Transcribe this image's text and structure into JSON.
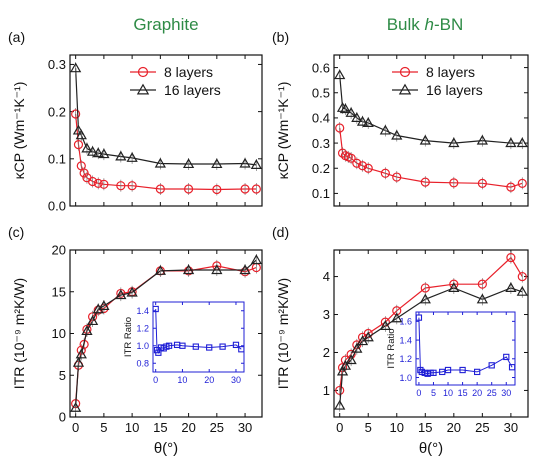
{
  "colors": {
    "red": "#e8212b",
    "black": "#222222",
    "blue": "#1f1fd6",
    "title_green": "#2e8b46"
  },
  "columns": [
    {
      "title_main": "Graphite",
      "title_italic": "",
      "title_rest": ""
    },
    {
      "title_main": "Bulk ",
      "title_italic": "h",
      "title_rest": "-BN"
    }
  ],
  "chart_data": [
    {
      "id": "a",
      "type": "line",
      "panel_label": "(a)",
      "ylabel": "κCP (Wm⁻¹K⁻¹)",
      "xlabel": "",
      "xlim": [
        -1,
        33
      ],
      "ylim": [
        0,
        0.32
      ],
      "xticks": [
        0,
        5,
        10,
        15,
        20,
        25,
        30
      ],
      "xtick_labels": [
        "",
        "",
        "",
        "",
        "",
        "",
        ""
      ],
      "yticks": [
        0.0,
        0.1,
        0.2,
        0.3
      ],
      "ytick_labels": [
        "0.0",
        "0.1",
        "0.2",
        "0.3"
      ],
      "legend_position": "top-right",
      "series": [
        {
          "name": "8 layers",
          "marker": "circle",
          "color": "red",
          "x": [
            0,
            0.5,
            1,
            1.5,
            2,
            3,
            4,
            5,
            8,
            10,
            15,
            20,
            25,
            30,
            32
          ],
          "y": [
            0.195,
            0.13,
            0.085,
            0.07,
            0.06,
            0.052,
            0.048,
            0.046,
            0.043,
            0.043,
            0.036,
            0.036,
            0.035,
            0.036,
            0.036
          ]
        },
        {
          "name": "16 layers",
          "marker": "triangle",
          "color": "black",
          "x": [
            0,
            0.5,
            1,
            2,
            3,
            4,
            5,
            8,
            10,
            15,
            20,
            25,
            30,
            32
          ],
          "y": [
            0.292,
            0.16,
            0.15,
            0.122,
            0.115,
            0.112,
            0.11,
            0.105,
            0.102,
            0.09,
            0.089,
            0.089,
            0.09,
            0.087
          ]
        }
      ]
    },
    {
      "id": "b",
      "type": "line",
      "panel_label": "(b)",
      "ylabel": "κCP (Wm⁻¹K⁻¹)",
      "xlabel": "",
      "xlim": [
        -1,
        33
      ],
      "ylim": [
        0.05,
        0.65
      ],
      "xticks": [
        0,
        5,
        10,
        15,
        20,
        25,
        30
      ],
      "xtick_labels": [
        "",
        "",
        "",
        "",
        "",
        "",
        ""
      ],
      "yticks": [
        0.1,
        0.2,
        0.3,
        0.4,
        0.5,
        0.6
      ],
      "ytick_labels": [
        "0.1",
        "0.2",
        "0.3",
        "0.4",
        "0.5",
        "0.6"
      ],
      "legend_position": "top-right",
      "series": [
        {
          "name": "8 layers",
          "marker": "circle",
          "color": "red",
          "x": [
            0,
            0.5,
            1,
            1.5,
            2,
            3,
            4,
            5,
            8,
            10,
            15,
            20,
            25,
            30,
            32
          ],
          "y": [
            0.36,
            0.26,
            0.25,
            0.245,
            0.24,
            0.22,
            0.21,
            0.2,
            0.18,
            0.165,
            0.145,
            0.142,
            0.14,
            0.125,
            0.14
          ]
        },
        {
          "name": "16 layers",
          "marker": "triangle",
          "color": "black",
          "x": [
            0,
            0.5,
            1,
            2,
            3,
            4,
            5,
            8,
            10,
            15,
            20,
            25,
            30,
            32
          ],
          "y": [
            0.57,
            0.44,
            0.435,
            0.42,
            0.4,
            0.385,
            0.38,
            0.35,
            0.33,
            0.31,
            0.3,
            0.31,
            0.3,
            0.3
          ]
        }
      ]
    },
    {
      "id": "c",
      "type": "line",
      "panel_label": "(c)",
      "ylabel": "ITR (10⁻⁹ m²K/W)",
      "xlabel": "θ(°)",
      "xlim": [
        -1,
        33
      ],
      "ylim": [
        0,
        20
      ],
      "xticks": [
        0,
        5,
        10,
        15,
        20,
        25,
        30
      ],
      "xtick_labels": [
        "0",
        "5",
        "10",
        "15",
        "20",
        "25",
        "30"
      ],
      "yticks": [
        0,
        5,
        10,
        15,
        20
      ],
      "ytick_labels": [
        "0",
        "5",
        "10",
        "15",
        "20"
      ],
      "series": [
        {
          "name": "8 layers",
          "marker": "circle",
          "color": "red",
          "x": [
            0,
            0.5,
            1,
            1.5,
            2,
            3,
            4,
            5,
            8,
            10,
            15,
            20,
            25,
            30,
            32
          ],
          "y": [
            1.6,
            6.2,
            8.0,
            8.7,
            10.5,
            12.0,
            12.8,
            13.0,
            14.8,
            15.0,
            17.5,
            17.5,
            18.1,
            17.4,
            17.9
          ]
        },
        {
          "name": "16 layers",
          "marker": "triangle",
          "color": "black",
          "x": [
            0,
            0.5,
            1,
            2,
            3,
            4,
            5,
            8,
            10,
            15,
            20,
            25,
            30,
            32
          ],
          "y": [
            1.1,
            6.5,
            7.5,
            10.3,
            11.5,
            12.9,
            13.3,
            14.6,
            14.9,
            17.5,
            17.6,
            17.6,
            17.6,
            18.8
          ]
        }
      ],
      "inset": {
        "ylabel": "ITR Ratio",
        "xlim": [
          -1,
          33
        ],
        "ylim": [
          0.7,
          1.5
        ],
        "xticks": [
          0,
          10,
          20,
          30
        ],
        "xtick_labels": [
          "0",
          "10",
          "20",
          "30"
        ],
        "yticks": [
          0.8,
          1.0,
          1.2,
          1.4
        ],
        "ytick_labels": [
          "0.8",
          "1.0",
          "1.2",
          "1.4"
        ],
        "series": [
          {
            "name": "",
            "marker": "square",
            "color": "blue",
            "x": [
              0,
              0.5,
              1,
              2,
              3,
              4,
              5,
              8,
              10,
              15,
              20,
              25,
              30,
              32
            ],
            "y": [
              1.42,
              0.95,
              0.92,
              0.98,
              0.97,
              0.99,
              1.0,
              1.01,
              1.0,
              0.99,
              0.98,
              0.99,
              1.01,
              0.96
            ]
          }
        ]
      }
    },
    {
      "id": "d",
      "type": "line",
      "panel_label": "(d)",
      "ylabel": "ITR (10⁻⁹ m²K/W)",
      "xlabel": "θ(°)",
      "xlim": [
        -1,
        33
      ],
      "ylim": [
        0.3,
        4.7
      ],
      "xticks": [
        0,
        5,
        10,
        15,
        20,
        25,
        30
      ],
      "xtick_labels": [
        "0",
        "5",
        "10",
        "15",
        "20",
        "25",
        "30"
      ],
      "yticks": [
        1,
        2,
        3,
        4
      ],
      "ytick_labels": [
        "1",
        "2",
        "3",
        "4"
      ],
      "series": [
        {
          "name": "8 layers",
          "marker": "circle",
          "color": "red",
          "x": [
            0,
            0.5,
            1,
            2,
            3,
            4,
            5,
            8,
            10,
            15,
            20,
            25,
            30,
            32
          ],
          "y": [
            1.0,
            1.6,
            1.8,
            1.95,
            2.2,
            2.4,
            2.5,
            2.8,
            3.1,
            3.7,
            3.8,
            3.8,
            4.5,
            4.0
          ]
        },
        {
          "name": "16 layers",
          "marker": "triangle",
          "color": "black",
          "x": [
            0,
            0.5,
            1,
            2,
            3,
            4,
            5,
            8,
            10,
            15,
            20,
            25,
            30,
            32
          ],
          "y": [
            0.6,
            1.5,
            1.65,
            1.8,
            2.1,
            2.3,
            2.4,
            2.7,
            2.9,
            3.4,
            3.7,
            3.4,
            3.7,
            3.6
          ]
        }
      ],
      "inset": {
        "ylabel": "ITR Ratio",
        "xlim": [
          -1,
          33
        ],
        "ylim": [
          0.92,
          1.7
        ],
        "xticks": [
          0,
          5,
          10,
          15,
          20,
          25,
          30
        ],
        "xtick_labels": [
          "0",
          "5",
          "10",
          "15",
          "20",
          "25",
          "30"
        ],
        "yticks": [
          1.0,
          1.2,
          1.4,
          1.6
        ],
        "ytick_labels": [
          "1.0",
          "1.2",
          "1.4",
          "1.6"
        ],
        "series": [
          {
            "name": "",
            "marker": "square",
            "color": "blue",
            "x": [
              0,
              0.5,
              1,
              2,
              3,
              4,
              5,
              8,
              10,
              15,
              20,
              25,
              30,
              32
            ],
            "y": [
              1.64,
              1.08,
              1.06,
              1.05,
              1.04,
              1.05,
              1.05,
              1.06,
              1.08,
              1.08,
              1.06,
              1.13,
              1.22,
              1.11
            ]
          }
        ]
      }
    }
  ]
}
